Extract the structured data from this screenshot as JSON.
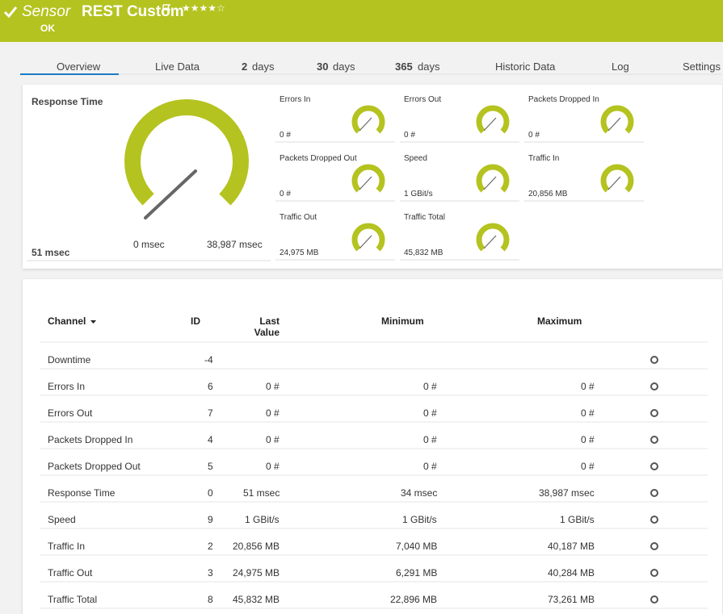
{
  "header": {
    "label": "Sensor",
    "title": "REST Custom",
    "status": "OK"
  },
  "tabs": [
    {
      "label": "Overview"
    },
    {
      "label": "Live Data"
    },
    {
      "count": "2",
      "unit": "days"
    },
    {
      "count": "30",
      "unit": "days"
    },
    {
      "count": "365",
      "unit": "days"
    },
    {
      "label": "Historic Data"
    },
    {
      "label": "Log"
    },
    {
      "label": "Settings"
    }
  ],
  "main_gauge": {
    "title": "Response Time",
    "value": "51 msec",
    "min": "0 msec",
    "max": "38,987 msec"
  },
  "gauges": [
    {
      "title": "Errors In",
      "value": "0 #"
    },
    {
      "title": "Errors Out",
      "value": "0 #"
    },
    {
      "title": "Packets Dropped In",
      "value": "0 #"
    },
    {
      "title": "Packets Dropped Out",
      "value": "0 #"
    },
    {
      "title": "Speed",
      "value": "1 GBit/s"
    },
    {
      "title": "Traffic In",
      "value": "20,856 MB"
    },
    {
      "title": "Traffic Out",
      "value": "24,975 MB"
    },
    {
      "title": "Traffic Total",
      "value": "45,832 MB"
    }
  ],
  "table": {
    "columns": [
      "Channel",
      "ID",
      "Last Value",
      "Minimum",
      "Maximum"
    ],
    "rows": [
      [
        "Downtime",
        -4,
        null,
        null,
        null
      ],
      [
        "Errors In",
        6,
        "0 #",
        "0 #",
        "0 #"
      ],
      [
        "Errors Out",
        7,
        "0 #",
        "0 #",
        "0 #"
      ],
      [
        "Packets Dropped In",
        4,
        "0 #",
        "0 #",
        "0 #"
      ],
      [
        "Packets Dropped Out",
        5,
        "0 #",
        "0 #",
        "0 #"
      ],
      [
        "Response Time",
        0,
        "51 msec",
        "34 msec",
        "38,987 msec"
      ],
      [
        "Speed",
        9,
        "1 GBit/s",
        "1 GBit/s",
        "1 GBit/s"
      ],
      [
        "Traffic In",
        2,
        "20,856 MB",
        "7,040 MB",
        "40,187 MB"
      ],
      [
        "Traffic Out",
        3,
        "24,975 MB",
        "6,291 MB",
        "40,284 MB"
      ],
      [
        "Traffic Total",
        8,
        "45,832 MB",
        "22,896 MB",
        "73,261 MB"
      ]
    ]
  }
}
